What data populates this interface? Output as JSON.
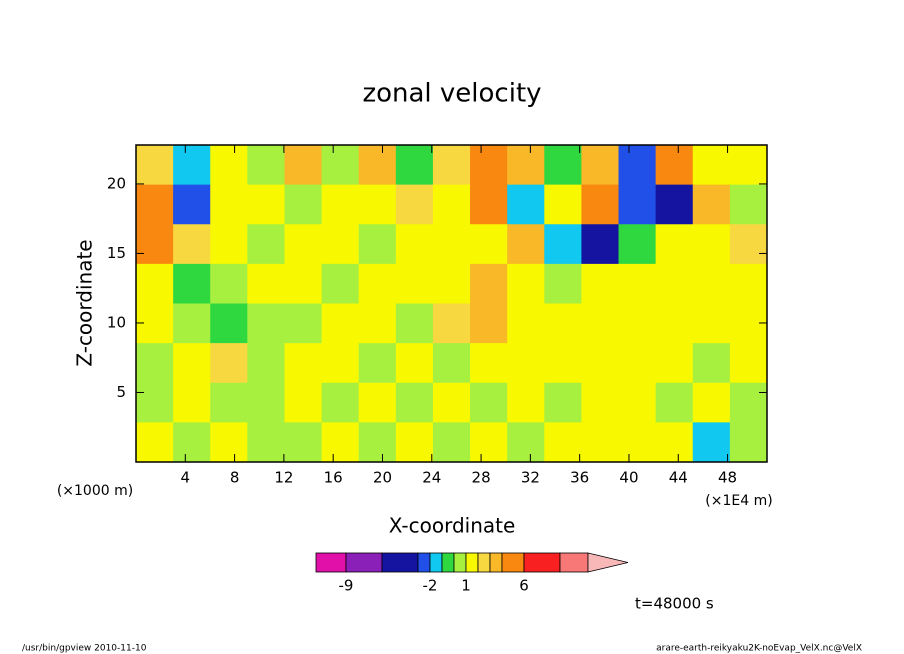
{
  "chart_data": {
    "type": "contour",
    "title": "zonal velocity",
    "xlabel": "X-coordinate",
    "ylabel": "Z-coordinate",
    "x_unit_left": "(×1000 m)",
    "x_unit_right": "(×1E4 m)",
    "xlim": [
      0,
      51.2
    ],
    "ylim": [
      0,
      22.8
    ],
    "xticks": [
      4,
      8,
      12,
      16,
      20,
      24,
      28,
      32,
      36,
      40,
      44,
      48
    ],
    "yticks": [
      5,
      10,
      15,
      20
    ],
    "z": [
      [
        2,
        -2,
        1,
        0,
        3,
        0,
        3,
        -1,
        2,
        4,
        3,
        -1,
        3,
        -3,
        4,
        1,
        1
      ],
      [
        4,
        -3,
        1,
        1,
        0,
        1,
        1,
        2,
        1,
        4,
        -2,
        1,
        4,
        -3,
        -4,
        3,
        0
      ],
      [
        4,
        2,
        1,
        0,
        1,
        1,
        0,
        1,
        1,
        1,
        3,
        -2,
        -4,
        -1,
        1,
        1,
        2
      ],
      [
        1,
        -0.5,
        0,
        1,
        1,
        0.5,
        1,
        1,
        1,
        3,
        1,
        0,
        1,
        1,
        1,
        1,
        1
      ],
      [
        1,
        0,
        -1,
        0,
        0,
        1,
        1,
        0,
        2,
        3,
        1,
        1,
        1,
        1,
        1,
        1,
        1
      ],
      [
        0.5,
        1,
        2,
        0,
        1,
        1,
        0,
        1,
        0,
        1,
        1,
        1,
        1,
        1,
        1,
        0,
        1
      ],
      [
        0,
        1,
        0,
        0,
        1,
        0,
        1,
        0,
        1,
        0,
        1,
        0,
        1,
        1,
        0,
        1,
        0
      ],
      [
        1,
        0,
        1,
        0,
        0,
        1,
        0,
        1,
        0,
        1,
        0,
        1,
        1,
        1,
        1,
        -2,
        0
      ]
    ],
    "levels": [
      -12,
      -9,
      -6,
      -3,
      -2,
      -1,
      0,
      1,
      2,
      3,
      4,
      6,
      9,
      12
    ],
    "colors": [
      "#e010a8",
      "#8a20b8",
      "#1414a0",
      "#2050e8",
      "#10c8f0",
      "#30d840",
      "#a8f040",
      "#f8f800",
      "#f8d840",
      "#f8b828",
      "#f88810",
      "#f82020",
      "#f87878",
      "#f8b8b8"
    ],
    "colorbar_ticks": [
      -9,
      -2,
      1,
      6
    ],
    "time_label": "t=48000 s",
    "footer_left": "/usr/bin/gpview   2010-11-10",
    "footer_right": "arare-earth-reikyaku2K-noEvap_VelX.nc@VelX"
  }
}
